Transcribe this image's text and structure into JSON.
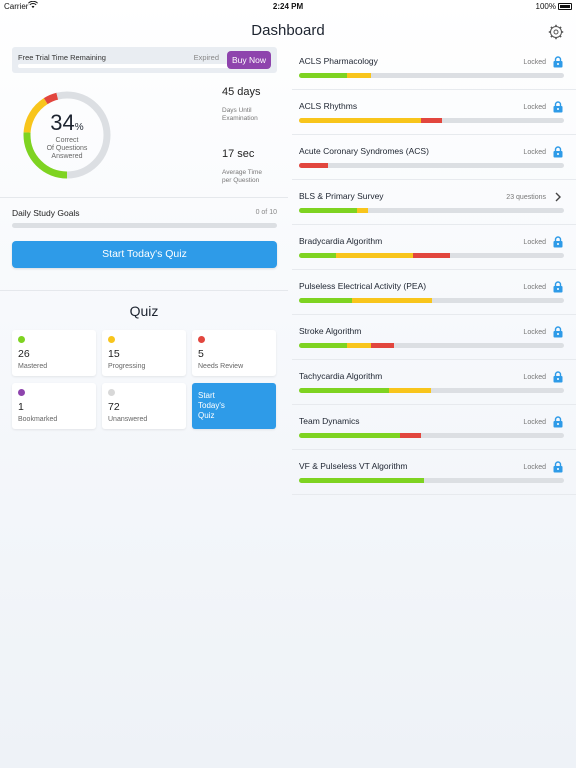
{
  "status_bar": {
    "carrier": "Carrier",
    "time": "2:24 PM",
    "battery": "100%"
  },
  "header": {
    "title": "Dashboard",
    "settings_icon": "gear-icon"
  },
  "colors": {
    "green": "#7ed321",
    "yellow": "#f8c51c",
    "red": "#e2463e",
    "gray": "#dcdfe3",
    "purple": "#8e44ad",
    "blue": "#2e9be8",
    "empty": "#d8d8d8"
  },
  "trial": {
    "label": "Free Trial Time Remaining",
    "expired": "Expired",
    "buy": "Buy Now"
  },
  "progress": {
    "percent_value": 34,
    "percent": "34",
    "percent_sign": "%",
    "caption_1": "Correct",
    "caption_2": "Of Questions",
    "caption_3": "Answered",
    "ring_segments": [
      {
        "color": "green",
        "fraction": 0.26
      },
      {
        "color": "yellow",
        "fraction": 0.15
      },
      {
        "color": "red",
        "fraction": 0.05
      },
      {
        "color": "gray",
        "fraction": 0.54
      }
    ]
  },
  "stats": {
    "days_value": "45 days",
    "days_label_1": "Days Until",
    "days_label_2": "Examination",
    "time_value": "17 sec",
    "time_label_1": "Average Time",
    "time_label_2": "per Question"
  },
  "goals": {
    "label": "Daily Study Goals",
    "count": "0 of 10",
    "progress": 0
  },
  "start_button": "Start Today's Quiz",
  "quiz": {
    "title": "Quiz",
    "cards": [
      {
        "num": "26",
        "label": "Mastered",
        "color": "green"
      },
      {
        "num": "15",
        "label": "Progressing",
        "color": "yellow"
      },
      {
        "num": "5",
        "label": "Needs Review",
        "color": "red"
      },
      {
        "num": "1",
        "label": "Bookmarked",
        "color": "purple"
      },
      {
        "num": "72",
        "label": "Unanswered",
        "color": "empty"
      }
    ],
    "start_card": [
      "Start",
      "Today's",
      "Quiz"
    ]
  },
  "topics": [
    {
      "name": "ACLS Pharmacology",
      "status": "Locked",
      "icon": "lock-icon",
      "segments": [
        [
          "green",
          0.18
        ],
        [
          "yellow",
          0.09
        ]
      ]
    },
    {
      "name": "ACLS Rhythms",
      "status": "Locked",
      "icon": "lock-icon",
      "segments": [
        [
          "yellow",
          0.46
        ],
        [
          "red",
          0.08
        ]
      ]
    },
    {
      "name": "Acute Coronary Syndromes (ACS)",
      "status": "Locked",
      "icon": "lock-icon",
      "segments": [
        [
          "red",
          0.11
        ]
      ]
    },
    {
      "name": "BLS & Primary Survey",
      "status": "23 questions",
      "icon": "chevron-right-icon",
      "segments": [
        [
          "green",
          0.22
        ],
        [
          "yellow",
          0.04
        ]
      ]
    },
    {
      "name": "Bradycardia Algorithm",
      "status": "Locked",
      "icon": "lock-icon",
      "segments": [
        [
          "green",
          0.14
        ],
        [
          "yellow",
          0.29
        ],
        [
          "red",
          0.14
        ]
      ]
    },
    {
      "name": "Pulseless Electrical Activity (PEA)",
      "status": "Locked",
      "icon": "lock-icon",
      "segments": [
        [
          "green",
          0.2
        ],
        [
          "yellow",
          0.3
        ]
      ]
    },
    {
      "name": "Stroke Algorithm",
      "status": "Locked",
      "icon": "lock-icon",
      "segments": [
        [
          "green",
          0.18
        ],
        [
          "yellow",
          0.09
        ],
        [
          "red",
          0.09
        ]
      ]
    },
    {
      "name": "Tachycardia Algorithm",
      "status": "Locked",
      "icon": "lock-icon",
      "segments": [
        [
          "green",
          0.34
        ],
        [
          "yellow",
          0.16
        ]
      ]
    },
    {
      "name": "Team Dynamics",
      "status": "Locked",
      "icon": "lock-icon",
      "segments": [
        [
          "green",
          0.38
        ],
        [
          "red",
          0.08
        ]
      ]
    },
    {
      "name": "VF & Pulseless VT Algorithm",
      "status": "Locked",
      "icon": "lock-icon",
      "segments": [
        [
          "green",
          0.47
        ]
      ]
    }
  ]
}
